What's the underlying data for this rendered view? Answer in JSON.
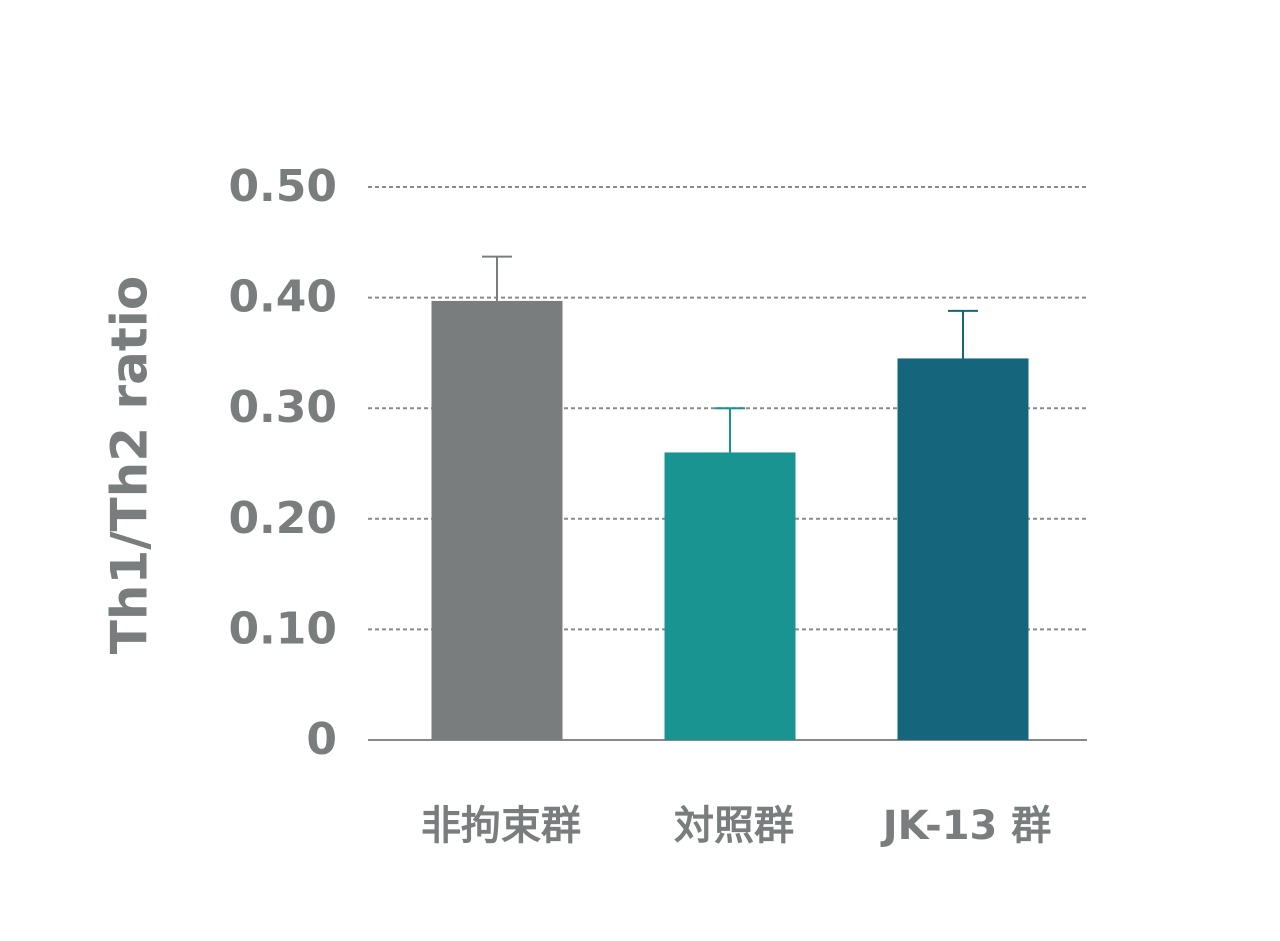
{
  "chart_data": {
    "type": "bar",
    "y_label": "Th1/Th2 ratio",
    "categories": [
      "非拘束群",
      "対照群",
      "JK-13 群"
    ],
    "values": [
      0.397,
      0.26,
      0.345
    ],
    "errors": [
      0.04,
      0.04,
      0.043
    ],
    "colors": [
      "#7a7d7e",
      "#1a9490",
      "#15667c"
    ],
    "ylim": [
      0,
      0.5
    ],
    "yticks": [
      0,
      {
        "value": 0.1,
        "label": "0.10"
      },
      {
        "value": 0.2,
        "label": "0.20"
      },
      {
        "value": 0.3,
        "label": "0.30"
      },
      {
        "value": 0.4,
        "label": "0.40"
      },
      {
        "value": 0.5,
        "label": "0.50"
      }
    ],
    "grid": true
  }
}
